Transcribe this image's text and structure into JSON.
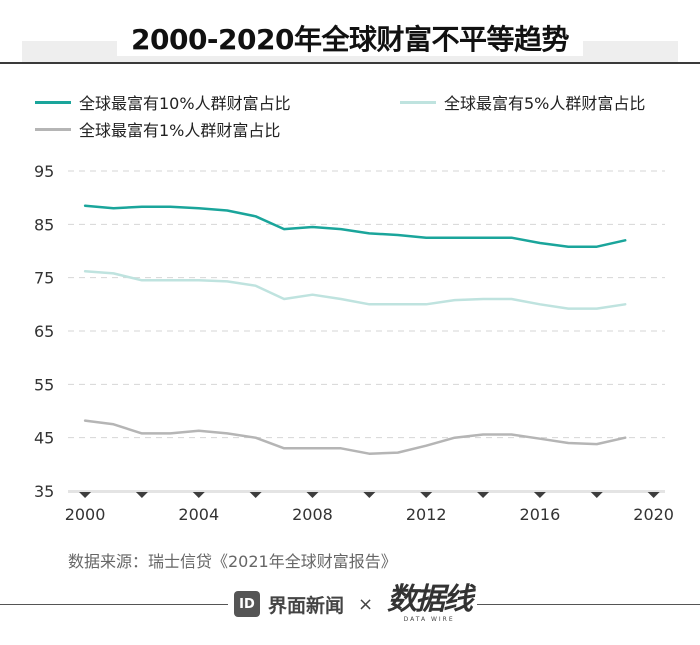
{
  "chart_data": {
    "type": "line",
    "title": "2000-2020年全球财富不平等趋势",
    "xlabel": "",
    "ylabel": "",
    "x": [
      2000,
      2001,
      2002,
      2003,
      2004,
      2005,
      2006,
      2007,
      2008,
      2009,
      2010,
      2011,
      2012,
      2013,
      2014,
      2015,
      2016,
      2017,
      2018,
      2019,
      2020
    ],
    "xticks": [
      "2000",
      "2004",
      "2008",
      "2012",
      "2016",
      "2020"
    ],
    "xtick_values": [
      2000,
      2004,
      2008,
      2012,
      2016,
      2020
    ],
    "yticks": [
      "95",
      "85",
      "75",
      "65",
      "55",
      "45",
      "35"
    ],
    "ytick_values": [
      95,
      85,
      75,
      65,
      55,
      45,
      35
    ],
    "xlim": [
      1999.4,
      2020.4
    ],
    "ylim": [
      35,
      95
    ],
    "series": [
      {
        "name": "全球最富有10%人群财富占比",
        "color": "#1aa59b",
        "values": [
          88.5,
          88.0,
          88.3,
          88.3,
          88.0,
          87.6,
          86.5,
          84.1,
          84.5,
          84.1,
          83.3,
          83.0,
          82.5,
          82.5,
          82.5,
          82.5,
          81.5,
          80.8,
          80.8,
          82.0,
          null
        ]
      },
      {
        "name": "全球最富有5%人群财富占比",
        "color": "#bfe3df",
        "values": [
          76.2,
          75.8,
          74.5,
          74.5,
          74.5,
          74.3,
          73.5,
          71.0,
          71.8,
          71.0,
          70.0,
          70.0,
          70.0,
          70.8,
          71.0,
          71.0,
          70.0,
          69.2,
          69.2,
          70.0,
          null
        ]
      },
      {
        "name": "全球最富有1%人群财富占比",
        "color": "#b5b5b5",
        "values": [
          48.2,
          47.5,
          45.8,
          45.8,
          46.3,
          45.8,
          45.0,
          43.0,
          43.0,
          43.0,
          42.0,
          42.2,
          43.5,
          45.0,
          45.6,
          45.6,
          44.8,
          44.0,
          43.8,
          45.0,
          null
        ]
      }
    ]
  },
  "source": "数据来源：瑞士信贷《2021年全球财富报告》",
  "footer": {
    "brand_name": "界面新闻",
    "times": "×",
    "wire_cn": "数据线",
    "wire_en": "DATA WIRE"
  }
}
